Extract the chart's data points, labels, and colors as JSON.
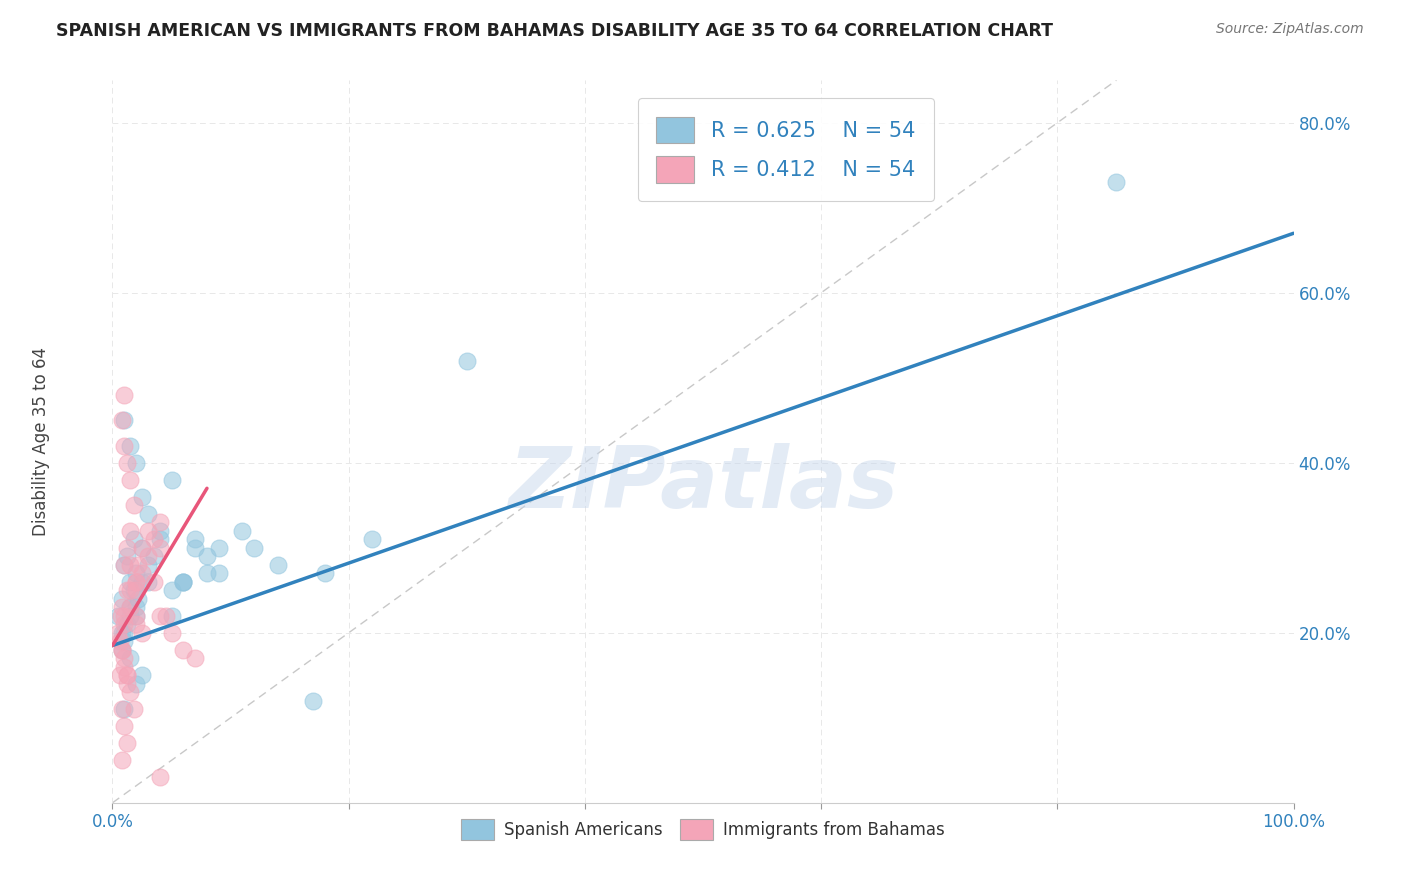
{
  "title": "SPANISH AMERICAN VS IMMIGRANTS FROM BAHAMAS DISABILITY AGE 35 TO 64 CORRELATION CHART",
  "source": "Source: ZipAtlas.com",
  "xlabel": "",
  "ylabel": "Disability Age 35 to 64",
  "xlim": [
    0.0,
    1.0
  ],
  "ylim": [
    0.0,
    0.85
  ],
  "xticks": [
    0.0,
    0.2,
    0.4,
    0.6,
    0.8,
    1.0
  ],
  "xtick_labels": [
    "0.0%",
    "",
    "",
    "",
    "",
    "100.0%"
  ],
  "yticks": [
    0.2,
    0.4,
    0.6,
    0.8
  ],
  "ytick_labels": [
    "20.0%",
    "40.0%",
    "60.0%",
    "80.0%"
  ],
  "legend_r1": "R = 0.625",
  "legend_n1": "N = 54",
  "legend_r2": "R = 0.412",
  "legend_n2": "N = 54",
  "color_blue": "#92c5de",
  "color_pink": "#f4a5b8",
  "color_blue_line": "#3182bd",
  "color_pink_line": "#e8567a",
  "color_diag": "#c8c8c8",
  "watermark": "ZIPatlas",
  "legend_label1": "Spanish Americans",
  "legend_label2": "Immigrants from Bahamas",
  "blue_scatter_x": [
    0.005,
    0.008,
    0.01,
    0.012,
    0.015,
    0.018,
    0.02,
    0.022,
    0.025,
    0.01,
    0.008,
    0.015,
    0.012,
    0.018,
    0.02,
    0.025,
    0.03,
    0.04,
    0.05,
    0.06,
    0.07,
    0.08,
    0.09,
    0.01,
    0.015,
    0.02,
    0.025,
    0.03,
    0.035,
    0.05,
    0.06,
    0.09,
    0.11,
    0.14,
    0.18,
    0.22,
    0.12,
    0.04,
    0.015,
    0.02,
    0.03,
    0.07,
    0.3,
    0.85,
    0.01,
    0.02,
    0.015,
    0.025,
    0.17,
    0.05,
    0.08,
    0.06,
    0.008,
    0.01
  ],
  "blue_scatter_y": [
    0.22,
    0.2,
    0.19,
    0.21,
    0.23,
    0.25,
    0.22,
    0.24,
    0.26,
    0.28,
    0.24,
    0.26,
    0.29,
    0.31,
    0.27,
    0.3,
    0.28,
    0.32,
    0.38,
    0.26,
    0.3,
    0.29,
    0.27,
    0.45,
    0.42,
    0.4,
    0.36,
    0.34,
    0.29,
    0.25,
    0.26,
    0.3,
    0.32,
    0.28,
    0.27,
    0.31,
    0.3,
    0.31,
    0.17,
    0.14,
    0.26,
    0.31,
    0.52,
    0.73,
    0.2,
    0.23,
    0.22,
    0.15,
    0.12,
    0.22,
    0.27,
    0.26,
    0.18,
    0.11
  ],
  "pink_scatter_x": [
    0.005,
    0.007,
    0.008,
    0.01,
    0.012,
    0.015,
    0.008,
    0.01,
    0.012,
    0.015,
    0.018,
    0.02,
    0.015,
    0.012,
    0.01,
    0.008,
    0.01,
    0.012,
    0.015,
    0.018,
    0.02,
    0.022,
    0.025,
    0.03,
    0.035,
    0.04,
    0.025,
    0.02,
    0.015,
    0.012,
    0.01,
    0.008,
    0.006,
    0.01,
    0.015,
    0.02,
    0.025,
    0.03,
    0.035,
    0.04,
    0.045,
    0.05,
    0.06,
    0.07,
    0.04,
    0.008,
    0.01,
    0.012,
    0.006,
    0.01,
    0.012,
    0.008,
    0.02,
    0.04
  ],
  "pink_scatter_y": [
    0.2,
    0.22,
    0.18,
    0.16,
    0.14,
    0.25,
    0.23,
    0.28,
    0.3,
    0.32,
    0.35,
    0.22,
    0.38,
    0.4,
    0.42,
    0.45,
    0.48,
    0.15,
    0.13,
    0.11,
    0.26,
    0.28,
    0.3,
    0.32,
    0.26,
    0.22,
    0.2,
    0.21,
    0.28,
    0.25,
    0.22,
    0.18,
    0.15,
    0.21,
    0.23,
    0.25,
    0.27,
    0.29,
    0.31,
    0.33,
    0.22,
    0.2,
    0.18,
    0.17,
    0.03,
    0.11,
    0.09,
    0.07,
    0.19,
    0.17,
    0.15,
    0.05,
    0.26,
    0.3
  ],
  "blue_line_x": [
    0.0,
    1.0
  ],
  "blue_line_y": [
    0.185,
    0.67
  ],
  "pink_line_x": [
    0.0,
    0.08
  ],
  "pink_line_y": [
    0.185,
    0.37
  ],
  "diag_line_x": [
    0.0,
    0.85
  ],
  "diag_line_y": [
    0.0,
    0.85
  ]
}
